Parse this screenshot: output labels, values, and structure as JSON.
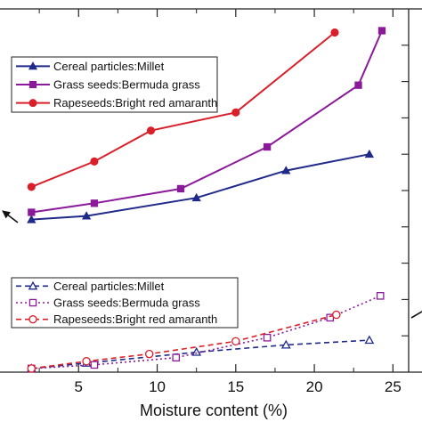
{
  "chart_data": {
    "type": "line",
    "xlabel": "Moisture content (%)",
    "xlim": [
      0,
      26
    ],
    "xticks": [
      5,
      10,
      15,
      20,
      25
    ],
    "ylim": [
      0,
      10
    ],
    "grid": false,
    "legends": [
      {
        "placement": "top-left",
        "series": [
          0,
          1,
          2
        ]
      },
      {
        "placement": "bottom-left",
        "series": [
          3,
          4,
          5
        ]
      }
    ],
    "series": [
      {
        "name": "Cereal particles:Millet",
        "color": "#1f2a8a",
        "marker": "triangle",
        "filled": true,
        "dash": "solid",
        "x": [
          2.0,
          5.5,
          12.5,
          18.2,
          23.5
        ],
        "y": [
          4.2,
          4.3,
          4.8,
          5.55,
          6.0
        ]
      },
      {
        "name": "Grass seeds:Bermuda grass",
        "color": "#8b1a9a",
        "marker": "square",
        "filled": true,
        "dash": "solid",
        "x": [
          2.0,
          6.0,
          11.5,
          17.0,
          22.8,
          24.3
        ],
        "y": [
          4.4,
          4.65,
          5.05,
          6.2,
          7.9,
          9.4
        ]
      },
      {
        "name": "Rapeseeds:Bright red  amaranth",
        "color": "#d9202a",
        "marker": "circle",
        "filled": true,
        "dash": "solid",
        "x": [
          2.0,
          6.0,
          9.6,
          15.0,
          21.3
        ],
        "y": [
          5.1,
          5.8,
          6.65,
          7.15,
          9.35
        ]
      },
      {
        "name": "Cereal particles:Millet",
        "color": "#1f2a8a",
        "marker": "triangle",
        "filled": false,
        "dash": "dashed",
        "x": [
          2.0,
          5.5,
          12.5,
          18.2,
          23.5
        ],
        "y": [
          0.1,
          0.25,
          0.55,
          0.75,
          0.88
        ]
      },
      {
        "name": "Grass seeds:Bermuda grass",
        "color": "#8b1a9a",
        "marker": "square",
        "filled": false,
        "dash": "dotted",
        "x": [
          2.0,
          6.0,
          11.2,
          17.0,
          21.0,
          24.2
        ],
        "y": [
          0.1,
          0.2,
          0.4,
          0.95,
          1.5,
          2.1
        ]
      },
      {
        "name": "Rapeseeds:Bright red  amaranth",
        "color": "#d9202a",
        "marker": "circle",
        "filled": false,
        "dash": "dashed",
        "x": [
          2.0,
          5.5,
          9.5,
          15.0,
          21.4
        ],
        "y": [
          0.1,
          0.3,
          0.5,
          0.85,
          1.58
        ]
      }
    ]
  }
}
